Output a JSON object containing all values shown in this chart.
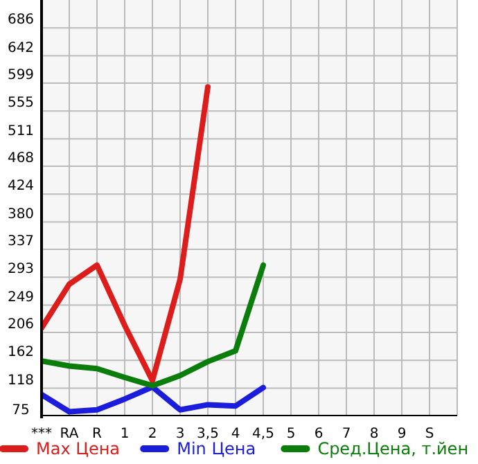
{
  "chart_data": {
    "type": "line",
    "categories": [
      "***",
      "RA",
      "R",
      "1",
      "2",
      "3",
      "3,5",
      "4",
      "4,5",
      "5",
      "6",
      "7",
      "8",
      "9",
      "S"
    ],
    "series": [
      {
        "name": "Max Цена",
        "color": "#dd1c1c",
        "values": [
          213,
          282,
          312,
          217,
          130,
          290,
          593,
          null,
          null,
          null,
          null,
          null,
          null,
          null,
          null
        ]
      },
      {
        "name": "Min Цена",
        "color": "#1c1cdd",
        "values": [
          108,
          81,
          84,
          101,
          120,
          84,
          92,
          90,
          119,
          null,
          null,
          null,
          null,
          null,
          null
        ]
      },
      {
        "name": "Сред.Цена, т.йен",
        "color": "#0a7d0a",
        "values": [
          161,
          153,
          149,
          135,
          122,
          138,
          160,
          177,
          312,
          null,
          null,
          null,
          null,
          null,
          null
        ]
      }
    ],
    "ylim": [
      75,
      730
    ],
    "yticks": [
      75,
      118,
      162,
      206,
      249,
      293,
      337,
      380,
      424,
      468,
      511,
      555,
      599,
      642,
      686
    ],
    "grid": true,
    "legend": "bottom",
    "marker": "none",
    "line_style": "solid"
  }
}
